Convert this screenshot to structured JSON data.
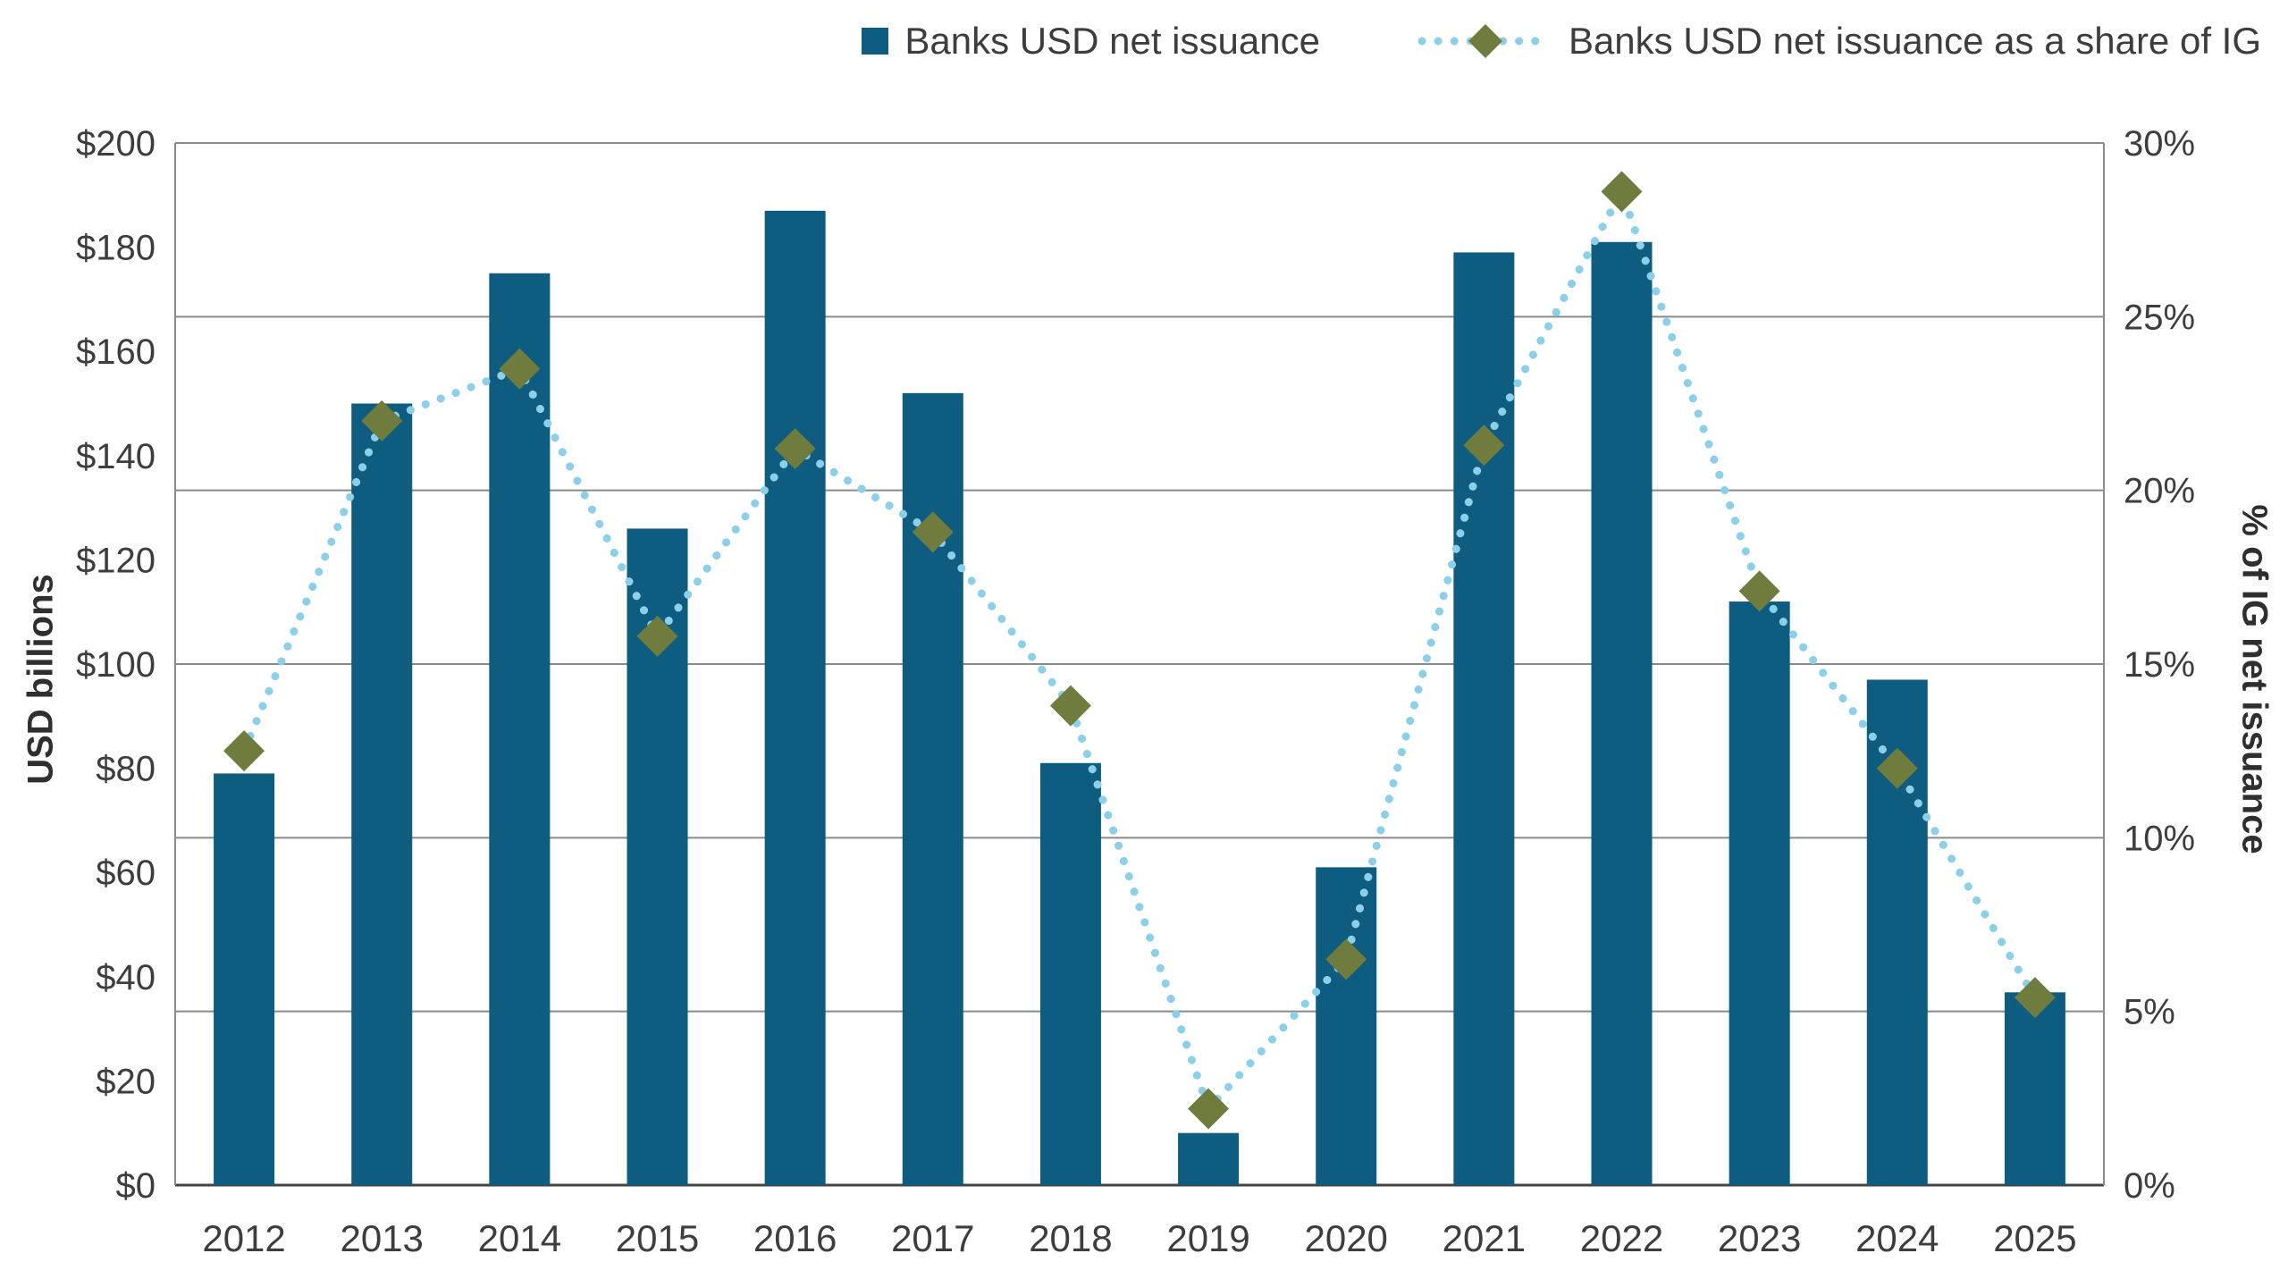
{
  "chart_data": {
    "type": "bar",
    "subtype": "combo-bar-line",
    "categories": [
      "2012",
      "2013",
      "2014",
      "2015",
      "2016",
      "2017",
      "2018",
      "2019",
      "2020",
      "2021",
      "2022",
      "2023",
      "2024",
      "2025"
    ],
    "series": [
      {
        "name": "Banks USD net issuance",
        "type": "bar",
        "axis": "left",
        "color": "#0e5c7f",
        "values": [
          79,
          150,
          175,
          126,
          187,
          152,
          81,
          10,
          61,
          179,
          181,
          112,
          97,
          37
        ]
      },
      {
        "name": "Banks USD net issuance as a share of IG",
        "type": "dotted-line-diamond",
        "axis": "right",
        "line_color": "#8ccfe8",
        "marker_color": "#6f7c3d",
        "values": [
          12.5,
          22.0,
          23.5,
          15.8,
          21.2,
          18.8,
          13.8,
          2.2,
          6.5,
          21.3,
          28.6,
          17.1,
          12.0,
          5.4
        ]
      }
    ],
    "left_axis": {
      "label": "USD billions",
      "min": 0,
      "max": 200,
      "step": 20,
      "ticks": [
        "$0",
        "$20",
        "$40",
        "$60",
        "$80",
        "$100",
        "$120",
        "$140",
        "$160",
        "$180",
        "$200"
      ]
    },
    "right_axis": {
      "label": "% of IG net issuance",
      "min": 0,
      "max": 30,
      "step": 5,
      "ticks": [
        "0%",
        "5%",
        "10%",
        "15%",
        "20%",
        "25%",
        "30%"
      ]
    },
    "grid": {
      "horizontal_at_right_ticks": true,
      "color": "#8a8a8a"
    },
    "legend_position": "top-right"
  },
  "legend": {
    "items": [
      {
        "label": "Banks USD net issuance",
        "swatch": "square",
        "color": "#0e5c7f"
      },
      {
        "label": "Banks USD net issuance as a share of IG",
        "swatch": "dotted-diamond",
        "line_color": "#8ccfe8",
        "marker_color": "#6f7c3d"
      }
    ]
  }
}
